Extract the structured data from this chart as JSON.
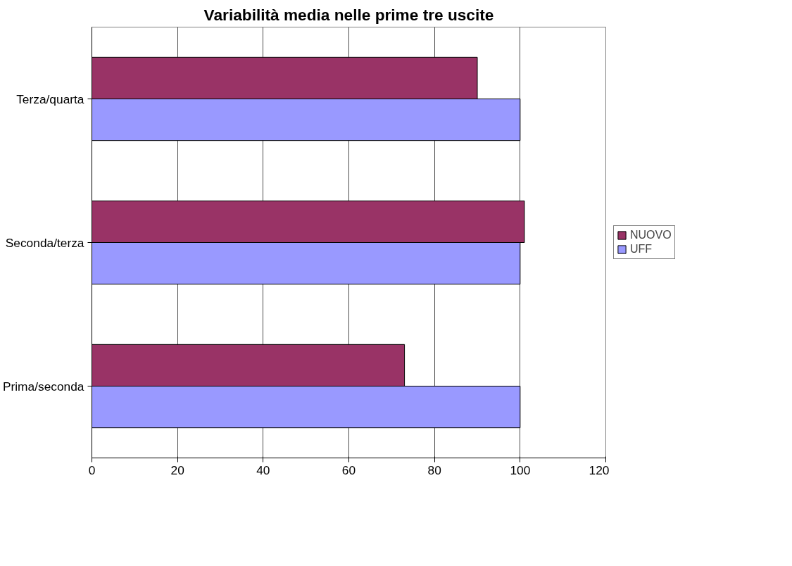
{
  "chart_data": {
    "type": "bar",
    "orientation": "horizontal",
    "title": "Variabilità media nelle prime tre uscite",
    "categories": [
      "Terza/quarta",
      "Seconda/terza",
      "Prima/seconda"
    ],
    "series": [
      {
        "name": "NUOVO",
        "color": "#993366",
        "values": [
          90,
          101,
          73
        ]
      },
      {
        "name": "UFF",
        "color": "#9999ff",
        "values": [
          100,
          100,
          100
        ]
      }
    ],
    "xlim": [
      0,
      120
    ],
    "xticks": [
      0,
      20,
      40,
      60,
      80,
      100,
      120
    ],
    "grid": "x",
    "legend": "right"
  }
}
